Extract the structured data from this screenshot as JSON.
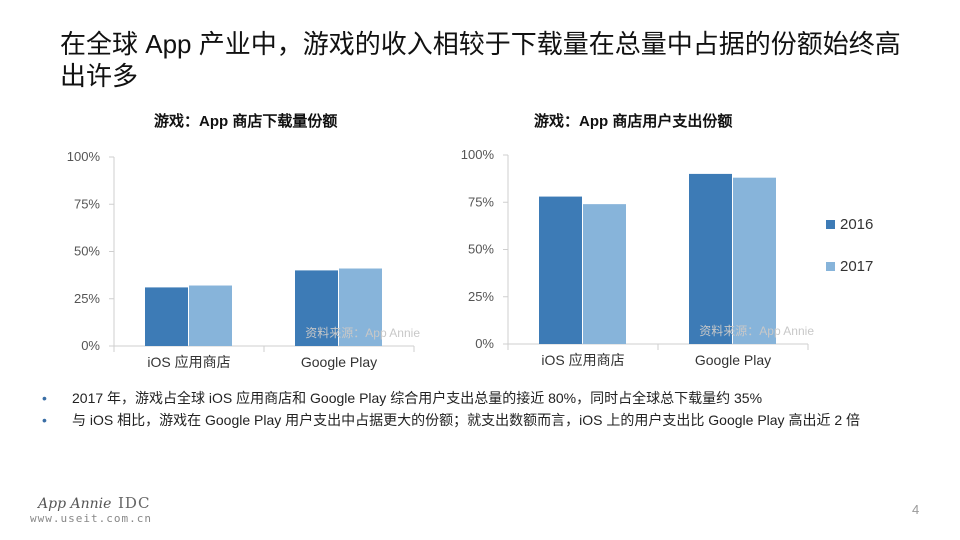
{
  "title": "在全球 App 产业中，游戏的收入相较于下载量在总量中占据的份额始终高出许多",
  "source_note": "资料来源：App Annie",
  "colors": {
    "series_2016": "#3d7bb6",
    "series_2017": "#87b4da",
    "axis": "#cfcfcf"
  },
  "chart_data": [
    {
      "type": "bar",
      "title": "游戏：App 商店下载量份额",
      "categories": [
        "iOS 应用商店",
        "Google Play"
      ],
      "series": [
        {
          "name": "2016",
          "values": [
            31,
            40
          ]
        },
        {
          "name": "2017",
          "values": [
            32,
            41
          ]
        }
      ],
      "ylim": [
        0,
        100
      ],
      "yticks": [
        "0%",
        "25%",
        "50%",
        "75%",
        "100%"
      ],
      "grid": false,
      "legend": "none"
    },
    {
      "type": "bar",
      "title": "游戏：App 商店用户支出份额",
      "categories": [
        "iOS 应用商店",
        "Google Play"
      ],
      "series": [
        {
          "name": "2016",
          "values": [
            78,
            90
          ]
        },
        {
          "name": "2017",
          "values": [
            74,
            88
          ]
        }
      ],
      "ylim": [
        0,
        100
      ],
      "yticks": [
        "0%",
        "25%",
        "50%",
        "75%",
        "100%"
      ],
      "grid": false,
      "legend": "right"
    }
  ],
  "legend": [
    {
      "label": "2016"
    },
    {
      "label": "2017"
    }
  ],
  "bullets": [
    "2017 年，游戏占全球 iOS 应用商店和 Google Play 综合用户支出总量的接近 80%，同时占全球总下载量约 35%",
    "与 iOS 相比，游戏在 Google Play 用户支出中占据更大的份额；就支出数额而言，iOS 上的用户支出比 Google Play 高出近 2 倍"
  ],
  "footer": {
    "logo_text": "App Annie",
    "idc_text": "IDC",
    "url": "www.useit.com.cn"
  },
  "page_number": "4"
}
